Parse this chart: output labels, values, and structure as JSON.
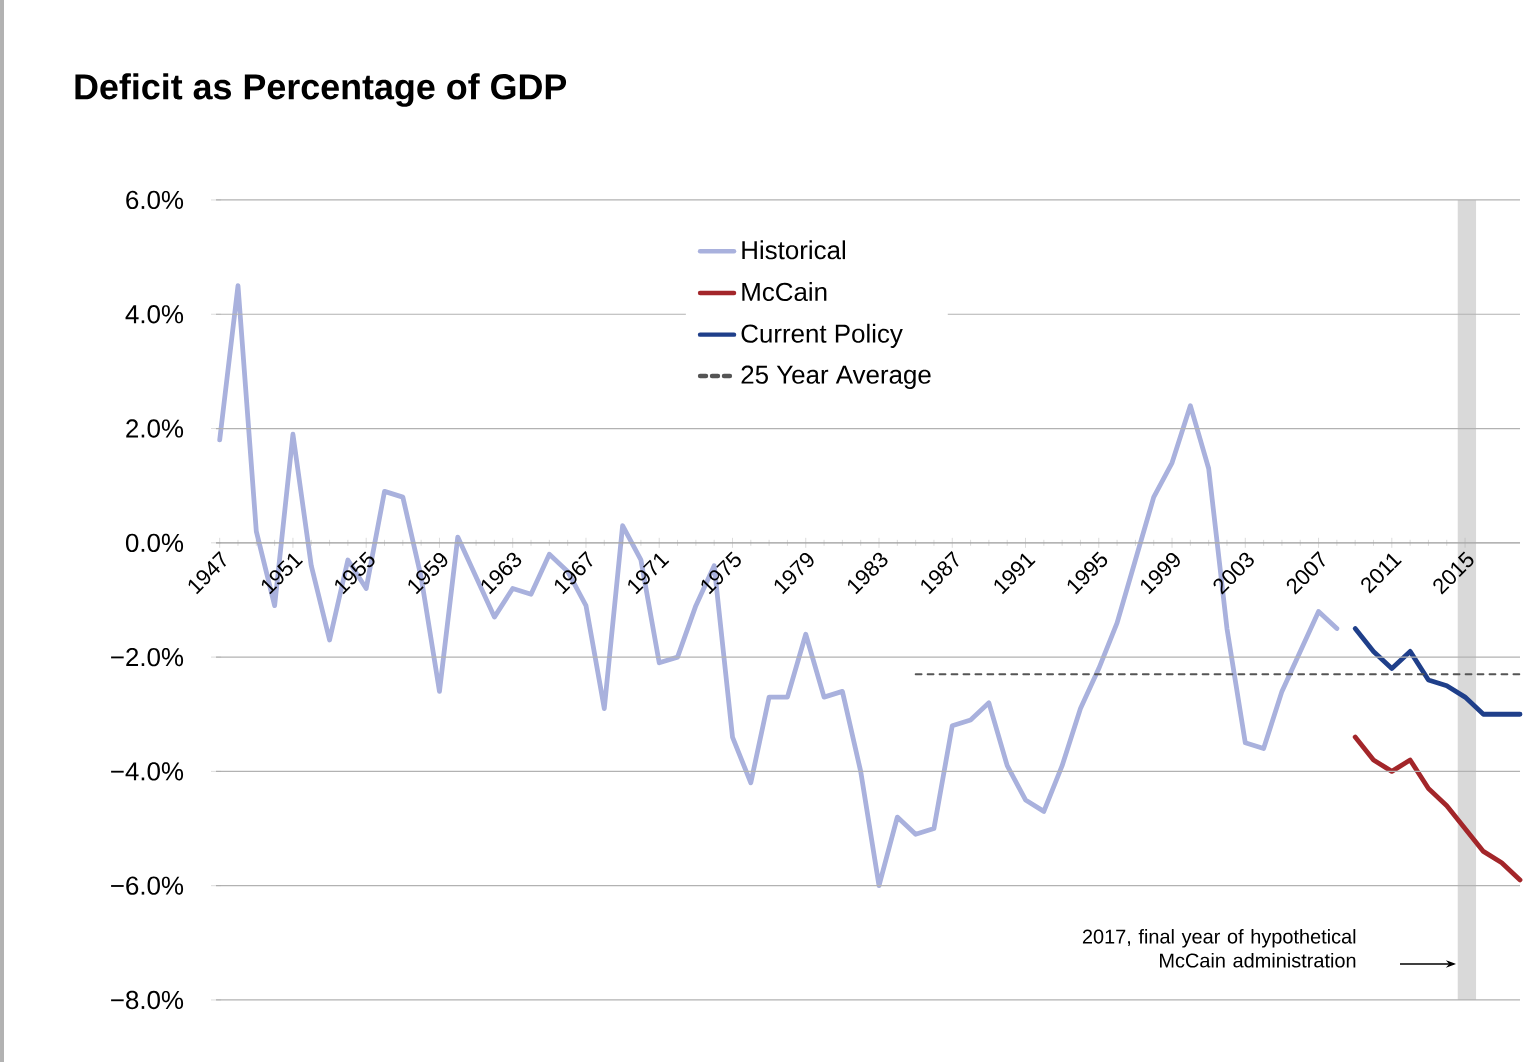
{
  "chart_data": {
    "type": "line",
    "title": "Deficit as Percentage of GDP",
    "x": [
      1947,
      1948,
      1949,
      1950,
      1951,
      1952,
      1953,
      1954,
      1955,
      1956,
      1957,
      1958,
      1959,
      1960,
      1961,
      1962,
      1963,
      1964,
      1965,
      1966,
      1967,
      1968,
      1969,
      1970,
      1971,
      1972,
      1973,
      1974,
      1975,
      1976,
      1977,
      1978,
      1979,
      1980,
      1981,
      1982,
      1983,
      1984,
      1985,
      1986,
      1987,
      1988,
      1989,
      1990,
      1991,
      1992,
      1993,
      1994,
      1995,
      1996,
      1997,
      1998,
      1999,
      2000,
      2001,
      2002,
      2003,
      2004,
      2005,
      2006,
      2007,
      2008
    ],
    "series": [
      {
        "name": "Historical",
        "color": "#a9b1dd",
        "values": [
          1.8,
          4.5,
          0.2,
          -1.1,
          1.9,
          -0.4,
          -1.7,
          -0.3,
          -0.8,
          0.9,
          0.8,
          -0.6,
          -2.6,
          0.1,
          -0.6,
          -1.3,
          -0.8,
          -0.9,
          -0.2,
          -0.5,
          -1.1,
          -2.9,
          0.3,
          -0.3,
          -2.1,
          -2.0,
          -1.1,
          -0.4,
          -3.4,
          -4.2,
          -2.7,
          -2.7,
          -1.6,
          -2.7,
          -2.6,
          -4.0,
          -6.0,
          -4.8,
          -5.1,
          -5.0,
          -3.2,
          -3.1,
          -2.8,
          -3.9,
          -4.5,
          -4.7,
          -3.9,
          -2.9,
          -2.2,
          -1.4,
          -0.3,
          0.8,
          1.4,
          2.4,
          1.3,
          -1.5,
          -3.5,
          -3.6,
          -2.6,
          -1.9,
          -1.2,
          -1.5
        ]
      },
      {
        "name": "McCain",
        "color": "#a3262a",
        "x": [
          2009,
          2010,
          2011,
          2012,
          2013,
          2014,
          2015,
          2016,
          2017,
          2018
        ],
        "values": [
          -3.4,
          -3.8,
          -4.0,
          -3.8,
          -4.3,
          -4.6,
          -5.0,
          -5.4,
          -5.6,
          -5.9
        ]
      },
      {
        "name": "Current Policy",
        "color": "#1f3f8a",
        "x": [
          2009,
          2010,
          2011,
          2012,
          2013,
          2014,
          2015,
          2016,
          2017,
          2018
        ],
        "values": [
          -1.5,
          -1.9,
          -2.2,
          -1.9,
          -2.4,
          -2.5,
          -2.7,
          -3.0,
          -3.0,
          -3.0
        ]
      },
      {
        "name": "25 Year Average",
        "color": "#555555",
        "line_style": "dashed",
        "x": [
          1985,
          2018
        ],
        "values": [
          -2.3,
          -2.3
        ]
      }
    ],
    "xlim": [
      1946.8,
      2018
    ],
    "xticks": [
      1947,
      1951,
      1955,
      1959,
      1963,
      1967,
      1971,
      1975,
      1979,
      1983,
      1987,
      1991,
      1995,
      1999,
      2003,
      2007,
      2011,
      2015
    ],
    "ylim": [
      -8,
      6
    ],
    "yticks": [
      {
        "value": 6,
        "label": "6.0%"
      },
      {
        "value": 4,
        "label": "4.0%"
      },
      {
        "value": 2,
        "label": "2.0%"
      },
      {
        "value": 0,
        "label": "0.0%"
      },
      {
        "value": -2,
        "label": "−2.0%"
      },
      {
        "value": -4,
        "label": "−4.0%"
      },
      {
        "value": -6,
        "label": "−6.0%"
      },
      {
        "value": -8,
        "label": "−8.0%"
      }
    ],
    "bands": [
      {
        "axis": "x",
        "from": 2014.6,
        "to": 2015.6,
        "color": "#d9d9d9"
      }
    ],
    "annotations": [
      "2017, final year of hypothetical McCain administration"
    ],
    "grid": "y",
    "legend": "top",
    "marker": "none",
    "line_style": "solid"
  }
}
